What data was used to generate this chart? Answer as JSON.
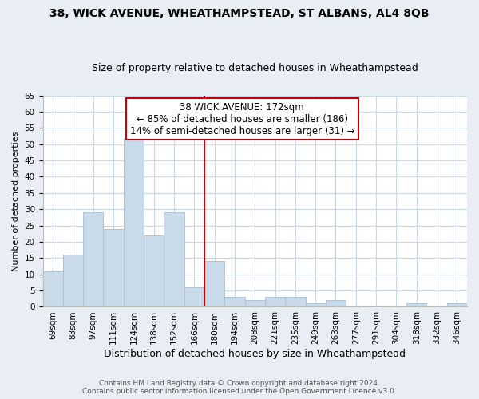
{
  "title": "38, WICK AVENUE, WHEATHAMPSTEAD, ST ALBANS, AL4 8QB",
  "subtitle": "Size of property relative to detached houses in Wheathampstead",
  "xlabel": "Distribution of detached houses by size in Wheathampstead",
  "ylabel": "Number of detached properties",
  "categories": [
    "69sqm",
    "83sqm",
    "97sqm",
    "111sqm",
    "124sqm",
    "138sqm",
    "152sqm",
    "166sqm",
    "180sqm",
    "194sqm",
    "208sqm",
    "221sqm",
    "235sqm",
    "249sqm",
    "263sqm",
    "277sqm",
    "291sqm",
    "304sqm",
    "318sqm",
    "332sqm",
    "346sqm"
  ],
  "values": [
    11,
    16,
    29,
    24,
    52,
    22,
    29,
    6,
    14,
    3,
    2,
    3,
    3,
    1,
    2,
    0,
    0,
    0,
    1,
    0,
    1
  ],
  "bar_color": "#c9daea",
  "bar_edge_color": "#adc4d8",
  "annotation_text_line1": "38 WICK AVENUE: 172sqm",
  "annotation_text_line2": "← 85% of detached houses are smaller (186)",
  "annotation_text_line3": "14% of semi-detached houses are larger (31) →",
  "annotation_box_color": "#ffffff",
  "annotation_box_edge_color": "#cc0000",
  "annotation_line_color": "#cc0000",
  "property_bar_index": 7.5,
  "ylim": [
    0,
    65
  ],
  "yticks": [
    0,
    5,
    10,
    15,
    20,
    25,
    30,
    35,
    40,
    45,
    50,
    55,
    60,
    65
  ],
  "footer_line1": "Contains HM Land Registry data © Crown copyright and database right 2024.",
  "footer_line2": "Contains public sector information licensed under the Open Government Licence v3.0.",
  "bg_color": "#e8eef4",
  "plot_bg_color": "#ffffff",
  "grid_color": "#c8d8e8",
  "title_fontsize": 10,
  "subtitle_fontsize": 9,
  "ylabel_fontsize": 8,
  "xlabel_fontsize": 9,
  "tick_fontsize": 7.5,
  "annot_fontsize": 8.5,
  "footer_fontsize": 6.5
}
